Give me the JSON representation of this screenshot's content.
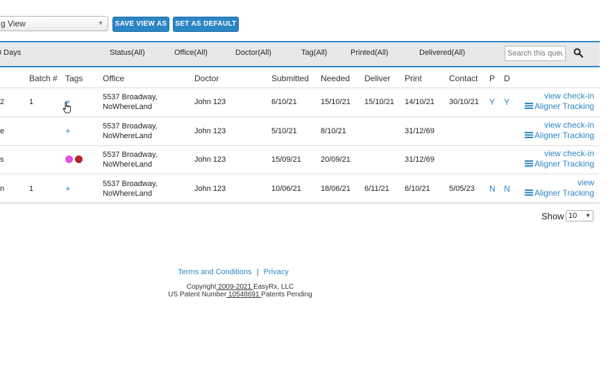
{
  "toolbar": {
    "view_select_value": "g View",
    "save_view_as_label": "SAVE VIEW AS",
    "set_as_default_label": "SET AS DEFAULT"
  },
  "filters": {
    "days_label": "0 Days",
    "status": "Status(All)",
    "office": "Office(All)",
    "doctor": "Doctor(All)",
    "tag": "Tag(All)",
    "printed": "Printed(All)",
    "delivered": "Delivered(All)",
    "search_placeholder": "Search this queue"
  },
  "table": {
    "headers": {
      "batch": "Batch #",
      "tags": "Tags",
      "office": "Office",
      "doctor": "Doctor",
      "submitted": "Submitted",
      "needed": "Needed",
      "deliver": "Deliver",
      "print": "Print",
      "contact": "Contact",
      "p": "P",
      "d": "D"
    },
    "rows": [
      {
        "first_col": "2",
        "batch": "1",
        "tag": "+",
        "office_line1": "5537 Broadway,",
        "office_line2": "NoWhereLand",
        "doctor": "John 123",
        "submitted": "6/10/21",
        "needed": "15/10/21",
        "deliver": "15/10/21",
        "print": "14/10/21",
        "contact": "30/10/21",
        "p": "Y",
        "d": "Y",
        "action1": "view check-in",
        "action2": "Aligner Tracking"
      },
      {
        "first_col": "e",
        "batch": "",
        "tag": "+",
        "office_line1": "5537 Broadway,",
        "office_line2": "NoWhereLand",
        "doctor": "John 123",
        "submitted": "5/10/21",
        "needed": "8/10/21",
        "deliver": "",
        "print": "31/12/69",
        "contact": "",
        "p": "",
        "d": "",
        "action1": "view check-in",
        "action2": "Aligner Tracking"
      },
      {
        "first_col": "s",
        "batch": "",
        "tag_colors": [
          "#e052e0",
          "#b3262c"
        ],
        "office_line1": "5537 Broadway,",
        "office_line2": "NoWhereLand",
        "doctor": "John 123",
        "submitted": "15/09/21",
        "needed": "20/09/21",
        "deliver": "",
        "print": "31/12/69",
        "contact": "",
        "p": "",
        "d": "",
        "action1": "view check-in",
        "action2": "Aligner Tracking"
      },
      {
        "first_col": "n",
        "batch": "1",
        "tag": "+",
        "office_line1": "5537 Broadway,",
        "office_line2": "NoWhereLand",
        "doctor": "John 123",
        "submitted": "10/06/21",
        "needed": "18/06/21",
        "deliver": "6/11/21",
        "print": "6/10/21",
        "contact": "5/05/23",
        "p": "N",
        "d": "N",
        "action1": "view",
        "action2": "Aligner Tracking"
      }
    ]
  },
  "pagination": {
    "show_label": "Show",
    "page_size": "10"
  },
  "footer": {
    "terms": "Terms and Conditions",
    "separator": "|",
    "privacy": "Privacy",
    "copyright_prefix": "Copyright",
    "copyright_years": " 2009-2021 ",
    "copyright_suffix": "EasyRx, LLC",
    "patent_prefix": "US Patent Number",
    "patent_number": " 10548691 ",
    "patent_suffix": "Patents Pending"
  },
  "colors": {
    "accent": "#2d86c4",
    "filter_bg": "#e8e8e8",
    "tag_magenta": "#e052e0",
    "tag_red": "#b3262c"
  }
}
